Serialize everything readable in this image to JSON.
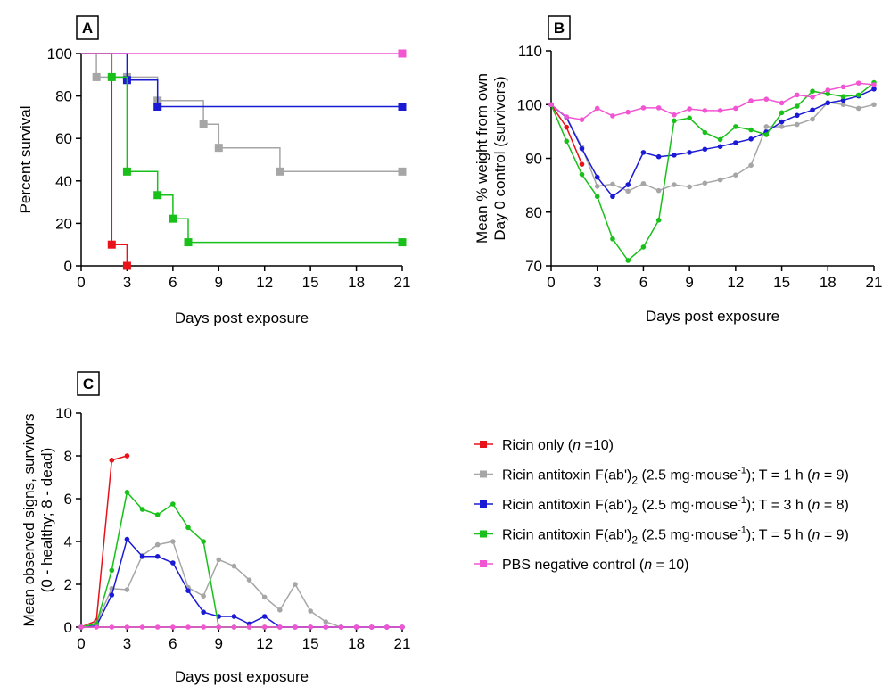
{
  "colors": {
    "ricin_only": "#e8121a",
    "t1h": "#a6a6a6",
    "t3h": "#1a1ad6",
    "t5h": "#19c019",
    "pbs": "#f255d2"
  },
  "legend": [
    {
      "key": "ricin_only",
      "text": "Ricin only (",
      "n": "n",
      "rest": " =10)"
    },
    {
      "key": "t1h",
      "text": "Ricin antitoxin F(ab')",
      "sub": "2",
      "mid": " (2.5 mg·mouse",
      "sup": "-1",
      "tail": "); T = 1 h (",
      "n": "n",
      "rest": " = 9)"
    },
    {
      "key": "t3h",
      "text": "Ricin antitoxin F(ab')",
      "sub": "2",
      "mid": " (2.5 mg·mouse",
      "sup": "-1",
      "tail": "); T = 3 h (",
      "n": "n",
      "rest": " = 8)"
    },
    {
      "key": "t5h",
      "text": "Ricin antitoxin F(ab')",
      "sub": "2",
      "mid": " (2.5 mg·mouse",
      "sup": "-1",
      "tail": "); T = 5 h (",
      "n": "n",
      "rest": " = 9)"
    },
    {
      "key": "pbs",
      "text": "PBS negative control (",
      "n": "n",
      "rest": " = 10)"
    }
  ],
  "chart_data": [
    {
      "panel": "A",
      "type": "line",
      "step": true,
      "xlabel": "Days post exposure",
      "ylabel": "Percent survival",
      "xlim": [
        0,
        21
      ],
      "ylim": [
        0,
        100
      ],
      "xticks": [
        0,
        3,
        6,
        9,
        12,
        15,
        18,
        21
      ],
      "yticks": [
        0,
        20,
        40,
        60,
        80,
        100
      ],
      "series": [
        {
          "key": "ricin_only",
          "points": [
            [
              0,
              100
            ],
            [
              2,
              10
            ],
            [
              3,
              0
            ]
          ]
        },
        {
          "key": "t1h",
          "points": [
            [
              0,
              100
            ],
            [
              1,
              88.9
            ],
            [
              3,
              88.9
            ],
            [
              5,
              77.8
            ],
            [
              8,
              66.7
            ],
            [
              9,
              55.6
            ],
            [
              13,
              44.4
            ],
            [
              21,
              44.4
            ]
          ]
        },
        {
          "key": "t3h",
          "points": [
            [
              0,
              100
            ],
            [
              3,
              87.5
            ],
            [
              5,
              75
            ],
            [
              21,
              75
            ]
          ]
        },
        {
          "key": "t5h",
          "points": [
            [
              0,
              100
            ],
            [
              2,
              88.9
            ],
            [
              3,
              44.4
            ],
            [
              5,
              33.3
            ],
            [
              6,
              22.2
            ],
            [
              7,
              11.1
            ],
            [
              21,
              11.1
            ]
          ]
        },
        {
          "key": "pbs",
          "points": [
            [
              0,
              100
            ],
            [
              21,
              100
            ]
          ]
        }
      ]
    },
    {
      "panel": "B",
      "type": "line",
      "xlabel": "Days post exposure",
      "ylabel": [
        "Mean % weight from own",
        "Day 0 control (survivors)"
      ],
      "xlim": [
        0,
        21
      ],
      "ylim": [
        70,
        110
      ],
      "xticks": [
        0,
        3,
        6,
        9,
        12,
        15,
        18,
        21
      ],
      "yticks": [
        70,
        80,
        90,
        100,
        110
      ],
      "series": [
        {
          "key": "ricin_only",
          "points": [
            [
              0,
              100
            ],
            [
              1,
              95.8
            ],
            [
              2,
              88.9
            ]
          ]
        },
        {
          "key": "t1h",
          "points": [
            [
              0,
              100
            ],
            [
              1,
              97.7
            ],
            [
              2,
              92.1
            ],
            [
              3,
              84.8
            ],
            [
              4,
              85.2
            ],
            [
              5,
              83.9
            ],
            [
              6,
              85.3
            ],
            [
              7,
              84.0
            ],
            [
              8,
              85.1
            ],
            [
              9,
              84.7
            ],
            [
              10,
              85.4
            ],
            [
              11,
              86.0
            ],
            [
              12,
              86.9
            ],
            [
              13,
              88.7
            ],
            [
              14,
              95.9
            ],
            [
              15,
              95.9
            ],
            [
              16,
              96.3
            ],
            [
              17,
              97.3
            ],
            [
              18,
              100.4
            ],
            [
              19,
              100
            ],
            [
              20,
              99.3
            ],
            [
              21,
              100
            ]
          ]
        },
        {
          "key": "t3h",
          "points": [
            [
              0,
              100
            ],
            [
              1,
              97.6
            ],
            [
              2,
              91.8
            ],
            [
              3,
              86.5
            ],
            [
              4,
              82.9
            ],
            [
              5,
              85.1
            ],
            [
              6,
              91.1
            ],
            [
              7,
              90.3
            ],
            [
              8,
              90.6
            ],
            [
              9,
              91.1
            ],
            [
              10,
              91.7
            ],
            [
              11,
              92.2
            ],
            [
              12,
              92.9
            ],
            [
              13,
              93.6
            ],
            [
              14,
              94.9
            ],
            [
              15,
              96.8
            ],
            [
              16,
              98.0
            ],
            [
              17,
              99.0
            ],
            [
              18,
              100.3
            ],
            [
              19,
              100.8
            ],
            [
              20,
              101.6
            ],
            [
              21,
              102.9
            ]
          ]
        },
        {
          "key": "t5h",
          "points": [
            [
              0,
              100
            ],
            [
              1,
              93.2
            ],
            [
              2,
              87.0
            ],
            [
              3,
              82.9
            ],
            [
              4,
              75.0
            ],
            [
              5,
              71.0
            ],
            [
              6,
              73.5
            ],
            [
              7,
              78.5
            ],
            [
              8,
              97.0
            ],
            [
              9,
              97.5
            ],
            [
              10,
              94.8
            ],
            [
              11,
              93.5
            ],
            [
              12,
              95.9
            ],
            [
              13,
              95.3
            ],
            [
              14,
              94.4
            ],
            [
              15,
              98.5
            ],
            [
              16,
              99.7
            ],
            [
              17,
              102.5
            ],
            [
              18,
              102.0
            ],
            [
              19,
              101.5
            ],
            [
              20,
              101.8
            ],
            [
              21,
              104.1
            ]
          ]
        },
        {
          "key": "pbs",
          "points": [
            [
              0,
              100
            ],
            [
              1,
              97.7
            ],
            [
              2,
              97.2
            ],
            [
              3,
              99.3
            ],
            [
              4,
              97.9
            ],
            [
              5,
              98.6
            ],
            [
              6,
              99.4
            ],
            [
              7,
              99.4
            ],
            [
              8,
              98.1
            ],
            [
              9,
              99.2
            ],
            [
              10,
              98.9
            ],
            [
              11,
              98.9
            ],
            [
              12,
              99.3
            ],
            [
              13,
              100.7
            ],
            [
              14,
              101.0
            ],
            [
              15,
              100.3
            ],
            [
              16,
              101.8
            ],
            [
              17,
              101.4
            ],
            [
              18,
              102.7
            ],
            [
              19,
              103.3
            ],
            [
              20,
              104.0
            ],
            [
              21,
              103.7
            ]
          ]
        }
      ]
    },
    {
      "panel": "C",
      "type": "line",
      "xlabel": "Days post exposure",
      "ylabel": [
        "Mean observed signs, survivors",
        "(0 - healthy; 8 - dead)"
      ],
      "xlim": [
        0,
        21
      ],
      "ylim": [
        0,
        10
      ],
      "xticks": [
        0,
        3,
        6,
        9,
        12,
        15,
        18,
        21
      ],
      "yticks": [
        0,
        2,
        4,
        6,
        8,
        10
      ],
      "series": [
        {
          "key": "ricin_only",
          "points": [
            [
              0,
              0
            ],
            [
              1,
              0.3
            ],
            [
              2,
              7.8
            ],
            [
              3,
              8.0
            ]
          ]
        },
        {
          "key": "t1h",
          "points": [
            [
              0,
              0
            ],
            [
              1,
              0.2
            ],
            [
              2,
              1.8
            ],
            [
              3,
              1.75
            ],
            [
              4,
              3.35
            ],
            [
              5,
              3.85
            ],
            [
              6,
              4.0
            ],
            [
              7,
              1.85
            ],
            [
              8,
              1.45
            ],
            [
              9,
              3.15
            ],
            [
              10,
              2.85
            ],
            [
              11,
              2.2
            ],
            [
              12,
              1.4
            ],
            [
              13,
              0.8
            ],
            [
              14,
              2.0
            ],
            [
              15,
              0.75
            ],
            [
              16,
              0.25
            ],
            [
              17,
              0
            ],
            [
              18,
              0
            ],
            [
              19,
              0
            ],
            [
              20,
              0
            ],
            [
              21,
              0
            ]
          ]
        },
        {
          "key": "t3h",
          "points": [
            [
              0,
              0
            ],
            [
              1,
              0.05
            ],
            [
              2,
              1.5
            ],
            [
              3,
              4.1
            ],
            [
              4,
              3.3
            ],
            [
              5,
              3.3
            ],
            [
              6,
              3.0
            ],
            [
              7,
              1.7
            ],
            [
              8,
              0.7
            ],
            [
              9,
              0.5
            ],
            [
              10,
              0.5
            ],
            [
              11,
              0.15
            ],
            [
              12,
              0.5
            ],
            [
              13,
              0
            ],
            [
              14,
              0
            ],
            [
              15,
              0
            ],
            [
              16,
              0
            ],
            [
              17,
              0
            ],
            [
              18,
              0
            ],
            [
              19,
              0
            ],
            [
              20,
              0
            ],
            [
              21,
              0
            ]
          ]
        },
        {
          "key": "t5h",
          "points": [
            [
              0,
              0
            ],
            [
              1,
              0.15
            ],
            [
              2,
              2.65
            ],
            [
              3,
              6.3
            ],
            [
              4,
              5.5
            ],
            [
              5,
              5.25
            ],
            [
              6,
              5.75
            ],
            [
              7,
              4.65
            ],
            [
              8,
              4.0
            ],
            [
              9,
              0
            ],
            [
              10,
              0
            ],
            [
              11,
              0
            ],
            [
              12,
              0
            ]
          ]
        },
        {
          "key": "pbs",
          "points": [
            [
              0,
              0
            ],
            [
              1,
              0
            ],
            [
              2,
              0
            ],
            [
              3,
              0
            ],
            [
              4,
              0
            ],
            [
              5,
              0
            ],
            [
              6,
              0
            ],
            [
              7,
              0
            ],
            [
              8,
              0
            ],
            [
              9,
              0
            ],
            [
              10,
              0
            ],
            [
              11,
              0
            ],
            [
              12,
              0
            ],
            [
              13,
              0
            ],
            [
              14,
              0
            ],
            [
              15,
              0
            ],
            [
              16,
              0
            ],
            [
              17,
              0
            ],
            [
              18,
              0
            ],
            [
              19,
              0
            ],
            [
              20,
              0
            ],
            [
              21,
              0
            ]
          ]
        }
      ]
    }
  ]
}
